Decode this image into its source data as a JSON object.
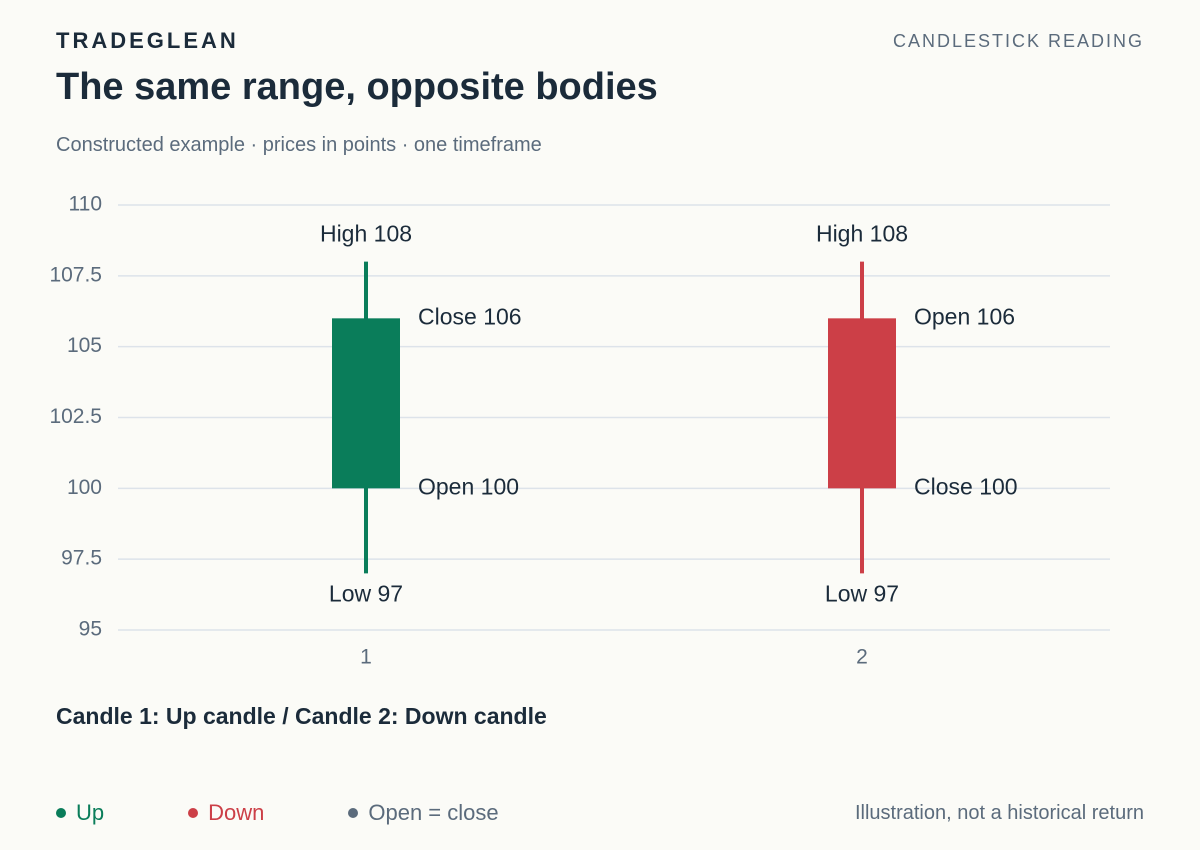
{
  "header": {
    "brand": "TRADEGLEAN",
    "section": "CANDLESTICK READING",
    "title": "The same range, opposite bodies",
    "subtitle": "Constructed example · prices in points · one timeframe"
  },
  "chart_data": {
    "type": "candlestick",
    "title": "",
    "xlabel": "",
    "ylabel": "",
    "ylim": [
      95,
      110
    ],
    "yticks": [
      110,
      107.5,
      105,
      102.5,
      100,
      97.5,
      95
    ],
    "ytick_labels": [
      "110",
      "107.5",
      "105",
      "102.5",
      "100",
      "97.5",
      "95"
    ],
    "grid": true,
    "categories": [
      "1",
      "2"
    ],
    "candles": [
      {
        "x": "1",
        "open": 100,
        "high": 108,
        "low": 97,
        "close": 106,
        "direction": "up",
        "labels": {
          "high": "High 108",
          "low": "Low 97",
          "body_top": "Close 106",
          "body_bottom": "Open 100"
        }
      },
      {
        "x": "2",
        "open": 106,
        "high": 108,
        "low": 97,
        "close": 100,
        "direction": "down",
        "labels": {
          "high": "High 108",
          "low": "Low 97",
          "body_top": "Open 106",
          "body_bottom": "Close 100"
        }
      }
    ]
  },
  "caption": "Candle 1: Up candle / Candle 2: Down candle",
  "legend": [
    {
      "label": "Up",
      "color": "#0a7d5a"
    },
    {
      "label": "Down",
      "color": "#cc3f47"
    },
    {
      "label": "Open = close",
      "color": "#5b6b7c"
    }
  ],
  "footnote": "Illustration, not a historical return",
  "colors": {
    "up": "#0a7d5a",
    "down": "#cc3f47",
    "grid": "#dde3ea",
    "axis_text": "#5b6b7c",
    "label_text": "#1b2b3a"
  }
}
